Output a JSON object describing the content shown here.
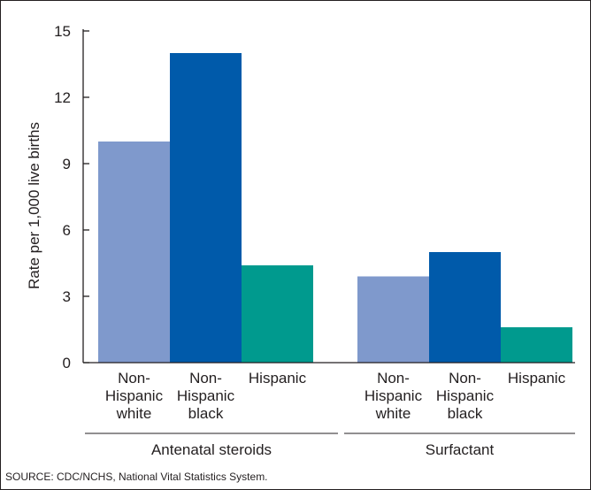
{
  "chart_data": {
    "type": "bar",
    "ylabel": "Rate per 1,000 live births",
    "ylim": [
      0,
      15
    ],
    "yticks": [
      0,
      3,
      6,
      9,
      12,
      15
    ],
    "grid": false,
    "groups": [
      {
        "label": "Antenatal steroids",
        "bars": [
          {
            "category": [
              "Non-",
              "Hispanic",
              "white"
            ],
            "value": 10.0,
            "color": "#7f99cc"
          },
          {
            "category": [
              "Non-",
              "Hispanic",
              "black"
            ],
            "value": 14.0,
            "color": "#005aaa"
          },
          {
            "category": [
              "Hispanic"
            ],
            "value": 4.4,
            "color": "#009a8e"
          }
        ]
      },
      {
        "label": "Surfactant",
        "bars": [
          {
            "category": [
              "Non-",
              "Hispanic",
              "white"
            ],
            "value": 3.9,
            "color": "#7f99cc"
          },
          {
            "category": [
              "Non-",
              "Hispanic",
              "black"
            ],
            "value": 5.0,
            "color": "#005aaa"
          },
          {
            "category": [
              "Hispanic"
            ],
            "value": 1.6,
            "color": "#009a8e"
          }
        ]
      }
    ]
  },
  "source": "SOURCE: CDC/NCHS, National Vital Statistics System."
}
